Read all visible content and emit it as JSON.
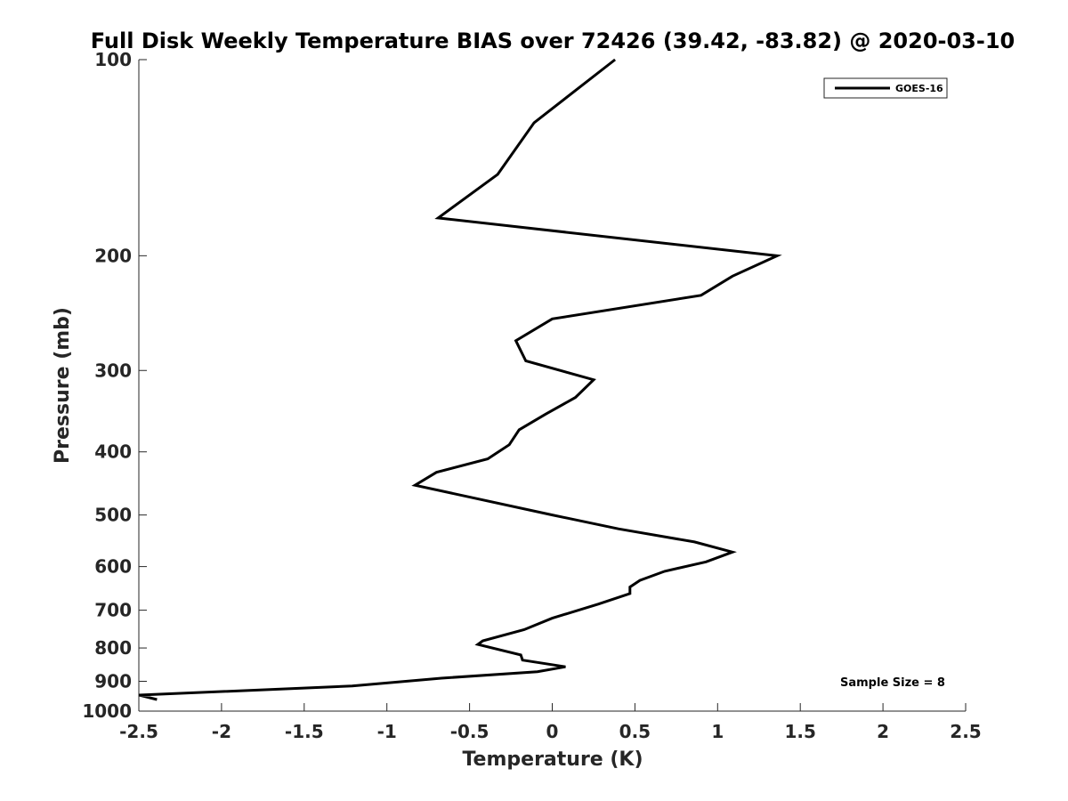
{
  "chart_data": {
    "type": "line",
    "title": "Full Disk Weekly Temperature BIAS over 72426 (39.42, -83.82) @ 2020-03-10",
    "xlabel": "Temperature (K)",
    "ylabel": "Pressure (mb)",
    "xlim": [
      -2.5,
      2.5
    ],
    "ylim": [
      100,
      1000
    ],
    "y_scale": "log",
    "y_reversed": true,
    "grid": false,
    "legend_position": "top-right",
    "x_ticks": [
      -2.5,
      -2,
      -1.5,
      -1,
      -0.5,
      0,
      0.5,
      1,
      1.5,
      2,
      2.5
    ],
    "x_tick_labels": [
      "-2.5",
      "-2",
      "-1.5",
      "-1",
      "-0.5",
      "0",
      "0.5",
      "1",
      "1.5",
      "2",
      "2.5"
    ],
    "y_ticks": [
      100,
      200,
      300,
      400,
      500,
      600,
      700,
      800,
      900,
      1000
    ],
    "y_tick_labels": [
      "100",
      "200",
      "300",
      "400",
      "500",
      "600",
      "700",
      "800",
      "900",
      "1000"
    ],
    "series": [
      {
        "name": "GOES-16",
        "color": "#000000",
        "points": [
          [
            0.38,
            100
          ],
          [
            -0.11,
            125
          ],
          [
            -0.33,
            150
          ],
          [
            -0.69,
            175
          ],
          [
            1.36,
            200
          ],
          [
            1.09,
            215
          ],
          [
            0.9,
            230
          ],
          [
            0.0,
            250
          ],
          [
            -0.22,
            270
          ],
          [
            -0.16,
            290
          ],
          [
            0.25,
            310
          ],
          [
            0.14,
            330
          ],
          [
            -0.04,
            350
          ],
          [
            -0.2,
            370
          ],
          [
            -0.26,
            390
          ],
          [
            -0.39,
            410
          ],
          [
            -0.7,
            430
          ],
          [
            -0.83,
            450
          ],
          [
            0.0,
            500
          ],
          [
            0.4,
            525
          ],
          [
            0.86,
            550
          ],
          [
            1.09,
            570
          ],
          [
            0.93,
            590
          ],
          [
            0.68,
            610
          ],
          [
            0.53,
            630
          ],
          [
            0.47,
            645
          ],
          [
            0.47,
            660
          ],
          [
            0.28,
            685
          ],
          [
            0.0,
            720
          ],
          [
            -0.17,
            750
          ],
          [
            -0.42,
            780
          ],
          [
            -0.45,
            790
          ],
          [
            -0.19,
            820
          ],
          [
            -0.18,
            835
          ],
          [
            0.08,
            855
          ],
          [
            -0.09,
            870
          ],
          [
            -0.67,
            890
          ],
          [
            -1.21,
            915
          ],
          [
            -2.5,
            945
          ],
          [
            -2.39,
            960
          ]
        ]
      }
    ],
    "annotations": [
      "Sample Size = 8"
    ]
  }
}
